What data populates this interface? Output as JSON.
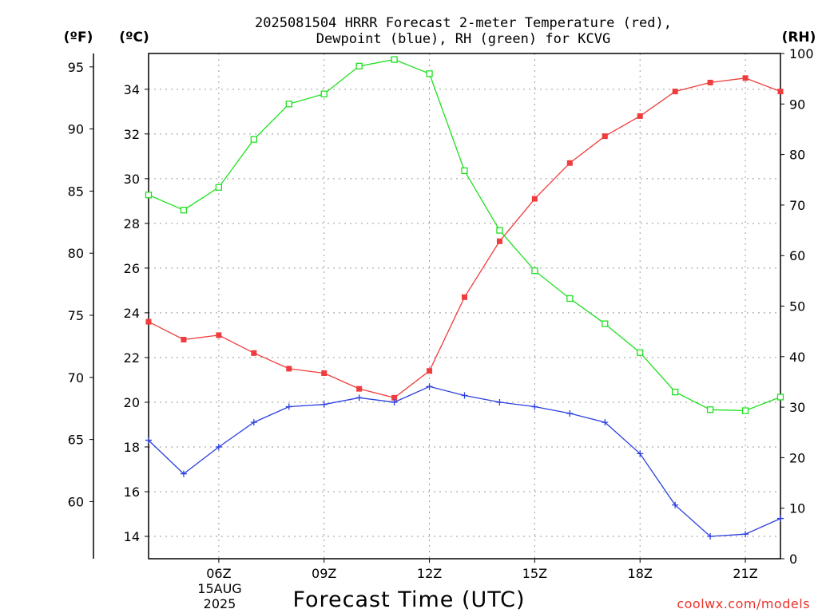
{
  "chart_data": {
    "type": "line",
    "title": "2025081504 HRRR Forecast 2-meter Temperature (red),",
    "subtitle": "Dewpoint (blue), RH (green) for KCVG",
    "xlabel": "Forecast Time (UTC)",
    "credit": "coolwx.com/models",
    "axis_units": {
      "f": "(ºF)",
      "c": "(ºC)",
      "rh": "(RH)"
    },
    "date_label": [
      "15AUG",
      "2025"
    ],
    "x": [
      4,
      5,
      6,
      7,
      8,
      9,
      10,
      11,
      12,
      13,
      14,
      15,
      16,
      17,
      18,
      19,
      20,
      21,
      22
    ],
    "xlim": [
      4,
      22
    ],
    "x_ticks": [
      {
        "x": 6,
        "label": "06Z"
      },
      {
        "x": 9,
        "label": "09Z"
      },
      {
        "x": 12,
        "label": "12Z"
      },
      {
        "x": 15,
        "label": "15Z"
      },
      {
        "x": 18,
        "label": "18Z"
      },
      {
        "x": 21,
        "label": "21Z"
      }
    ],
    "ylim_c": [
      13.0,
      35.6
    ],
    "ylim_rh": [
      0,
      100
    ],
    "y_ticks_c": [
      14,
      16,
      18,
      20,
      22,
      24,
      26,
      28,
      30,
      32,
      34
    ],
    "y_ticks_f": [
      60,
      65,
      70,
      75,
      80,
      85,
      90,
      95
    ],
    "y_ticks_rh": [
      0,
      10,
      20,
      30,
      40,
      50,
      60,
      70,
      80,
      90,
      100
    ],
    "grid": true,
    "series": [
      {
        "name": "Temperature",
        "axis": "c",
        "color": "#f03c3c",
        "marker": "filled-square",
        "values": [
          23.6,
          22.8,
          23.0,
          22.2,
          21.5,
          21.3,
          20.6,
          20.2,
          21.4,
          24.7,
          27.2,
          29.1,
          30.7,
          31.9,
          32.8,
          33.9,
          34.3,
          34.5,
          33.9
        ]
      },
      {
        "name": "Dewpoint",
        "axis": "c",
        "color": "#2b3fe0",
        "marker": "plus",
        "values": [
          18.3,
          16.8,
          18.0,
          19.1,
          19.8,
          19.9,
          20.2,
          20.0,
          20.7,
          20.3,
          20.0,
          19.8,
          19.5,
          19.1,
          17.7,
          15.4,
          14.0,
          14.1,
          14.8
        ]
      },
      {
        "name": "RH",
        "axis": "rh",
        "color": "#1ee01e",
        "marker": "open-square",
        "values": [
          72.0,
          69.0,
          73.5,
          83.0,
          90.0,
          92.0,
          97.5,
          98.8,
          96.0,
          76.8,
          65.0,
          57.0,
          51.5,
          46.5,
          40.8,
          33.0,
          29.5,
          29.3,
          32.0
        ]
      }
    ]
  }
}
